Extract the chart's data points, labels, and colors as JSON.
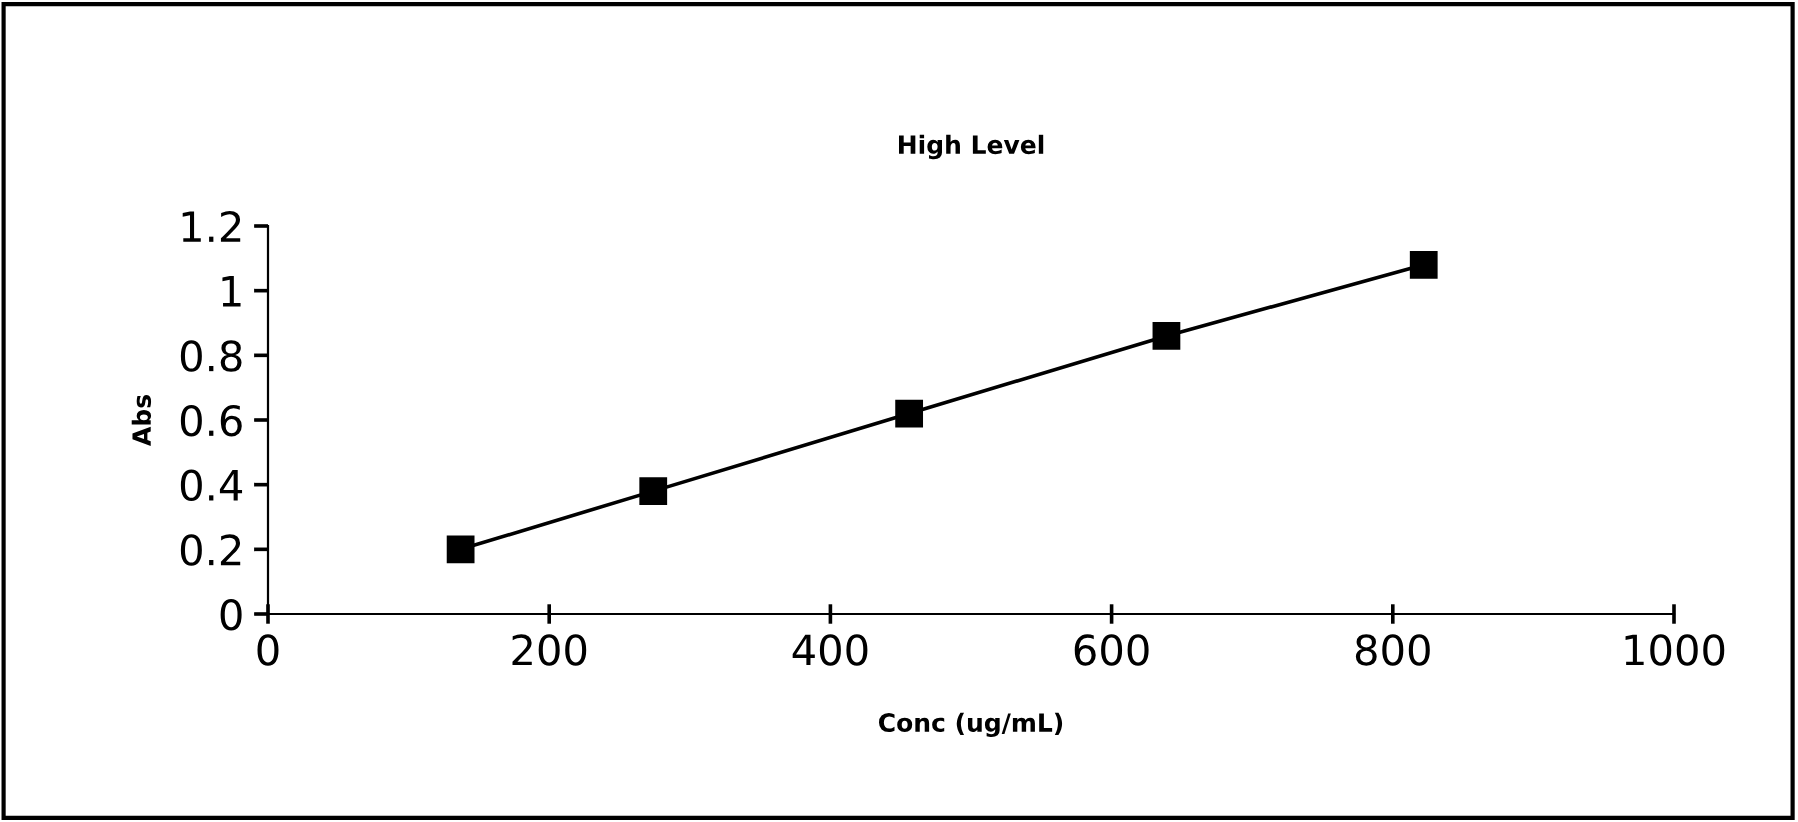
{
  "chart_data": {
    "type": "line",
    "title": "High Level",
    "xlabel": "Conc (ug/mL)",
    "ylabel": "Abs",
    "x": [
      137,
      274,
      456,
      639,
      822
    ],
    "series": [
      {
        "color": "#000000",
        "values": [
          0.2,
          0.38,
          0.62,
          0.86,
          1.08
        ]
      }
    ],
    "marker": "square",
    "line_style": "solid",
    "xlim": [
      0,
      1000
    ],
    "xticks": [
      0,
      200,
      400,
      600,
      800,
      1000
    ],
    "ylim": [
      0,
      1.2
    ],
    "yticks": [
      0,
      0.2,
      0.4,
      0.6,
      0.8,
      1,
      1.2
    ],
    "grid": false,
    "legend": false
  }
}
